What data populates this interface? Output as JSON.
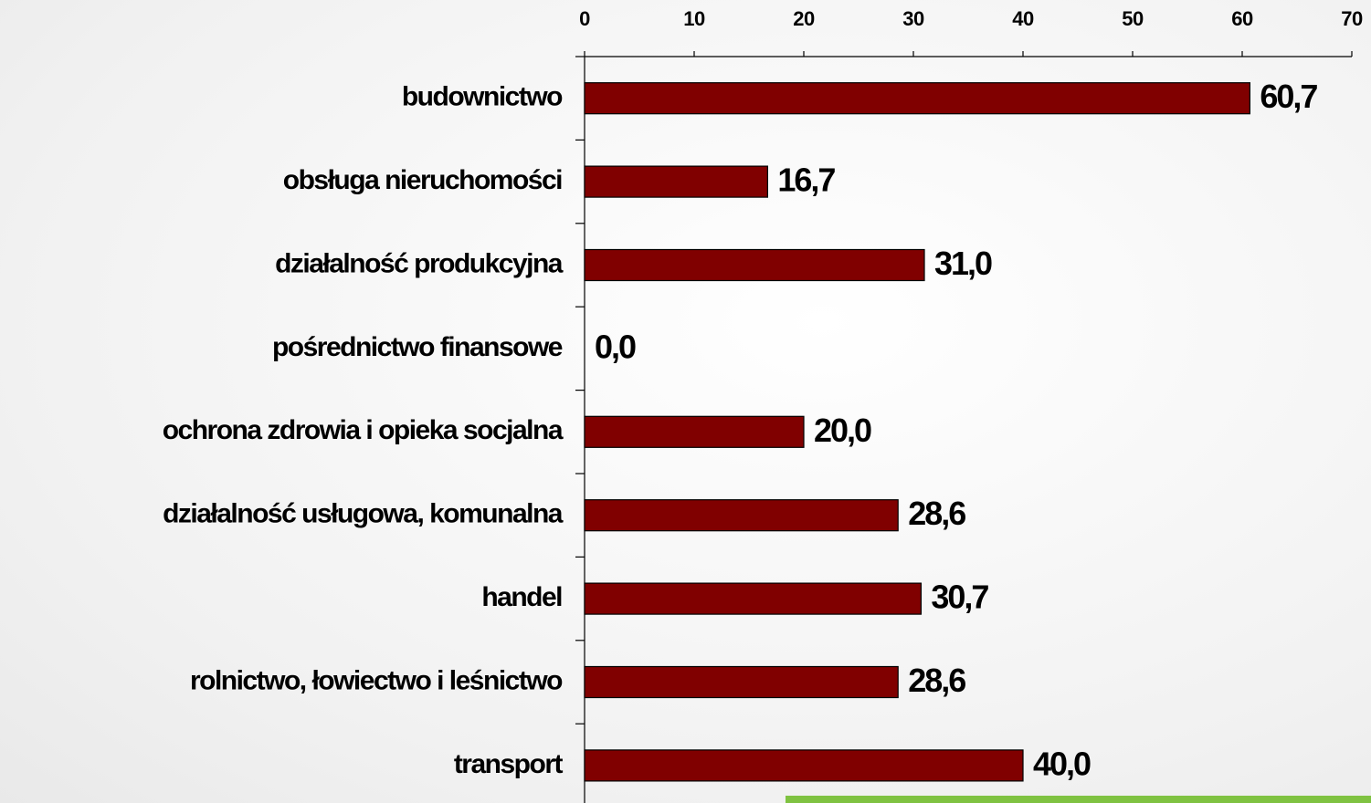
{
  "chart_data": {
    "type": "bar",
    "orientation": "horizontal",
    "categories": [
      "budownictwo",
      "obsługa nieruchomości",
      "działalność produkcyjna",
      "pośrednictwo finansowe",
      "ochrona zdrowia i opieka socjalna",
      "działalność usługowa, komunalna",
      "handel",
      "rolnictwo, łowiectwo i leśnictwo",
      "transport"
    ],
    "values": [
      60.7,
      16.7,
      31.0,
      0.0,
      20.0,
      28.6,
      30.7,
      28.6,
      40.0
    ],
    "value_labels": [
      "60,7",
      "16,7",
      "31,0",
      "0,0",
      "20,0",
      "28,6",
      "30,7",
      "28,6",
      "40,0"
    ],
    "color": "#800000",
    "xlim": [
      0,
      70
    ],
    "xticks": [
      0,
      10,
      20,
      30,
      40,
      50,
      60,
      70
    ]
  }
}
